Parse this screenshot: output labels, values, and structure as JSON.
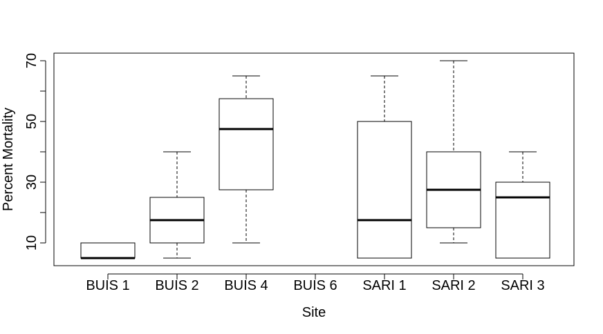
{
  "chart_data": {
    "type": "boxplot",
    "title": "",
    "xlabel": "Site",
    "ylabel": "Percent Mortality",
    "ylim": [
      2.5,
      72.5
    ],
    "yticks": [
      10,
      30,
      50,
      70
    ],
    "yticks_minor": [
      20,
      40,
      60
    ],
    "grid": false,
    "legend": "none",
    "categories": [
      "BUIS 1",
      "BUIS 2",
      "BUIS 4",
      "BUIS 6",
      "SARI 1",
      "SARI 2",
      "SARI 3"
    ],
    "boxes": [
      {
        "category": "BUIS 1",
        "min": 5,
        "q1": 5,
        "median": 5,
        "q3": 10,
        "max": 10
      },
      {
        "category": "BUIS 2",
        "min": 5,
        "q1": 10,
        "median": 17.5,
        "q3": 25,
        "max": 40
      },
      {
        "category": "BUIS 4",
        "min": 10,
        "q1": 27.5,
        "median": 47.5,
        "q3": 57.5,
        "max": 65
      },
      {
        "category": "BUIS 6",
        "min": null,
        "q1": null,
        "median": null,
        "q3": null,
        "max": null
      },
      {
        "category": "SARI 1",
        "min": 5,
        "q1": 5,
        "median": 17.5,
        "q3": 50,
        "max": 65
      },
      {
        "category": "SARI 2",
        "min": 10,
        "q1": 15,
        "median": 27.5,
        "q3": 40,
        "max": 70
      },
      {
        "category": "SARI 3",
        "min": 5,
        "q1": 5,
        "median": 25,
        "q3": 30,
        "max": 40
      }
    ]
  }
}
